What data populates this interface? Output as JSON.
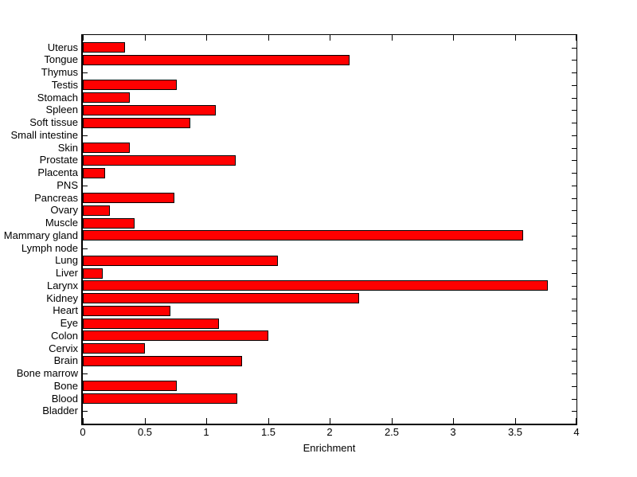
{
  "figure": {
    "background": "#FFFFFF",
    "text_color": "#000000"
  },
  "chart_data": {
    "type": "bar",
    "orientation": "horizontal",
    "title": "",
    "xlabel": "Enrichment",
    "ylabel": "",
    "xlim": [
      0,
      4
    ],
    "xtick_values": [
      0,
      0.5,
      1,
      1.5,
      2,
      2.5,
      3,
      3.5,
      4
    ],
    "xtick_labels": [
      "0",
      "0.5",
      "1",
      "1.5",
      "2",
      "2.5",
      "3",
      "3.5",
      "4"
    ],
    "grid": false,
    "legend": null,
    "bar_color": "#FF0000",
    "bar_edge_color": "#000000",
    "axis_color": "#000000",
    "categories": [
      "Uterus",
      "Tongue",
      "Thymus",
      "Testis",
      "Stomach",
      "Spleen",
      "Soft tissue",
      "Small intestine",
      "Skin",
      "Prostate",
      "Placenta",
      "PNS",
      "Pancreas",
      "Ovary",
      "Muscle",
      "Mammary gland",
      "Lymph node",
      "Lung",
      "Liver",
      "Larynx",
      "Kidney",
      "Heart",
      "Eye",
      "Colon",
      "Cervix",
      "Brain",
      "Bone marrow",
      "Bone",
      "Blood",
      "Bladder"
    ],
    "values": [
      0.34,
      2.16,
      0,
      0.76,
      0.38,
      1.08,
      0.87,
      0,
      0.38,
      1.24,
      0.18,
      0,
      0.74,
      0.22,
      0.42,
      3.57,
      0,
      1.58,
      0.16,
      3.77,
      2.24,
      0.71,
      1.1,
      1.5,
      0.5,
      1.29,
      0,
      0.76,
      1.25,
      0
    ]
  }
}
